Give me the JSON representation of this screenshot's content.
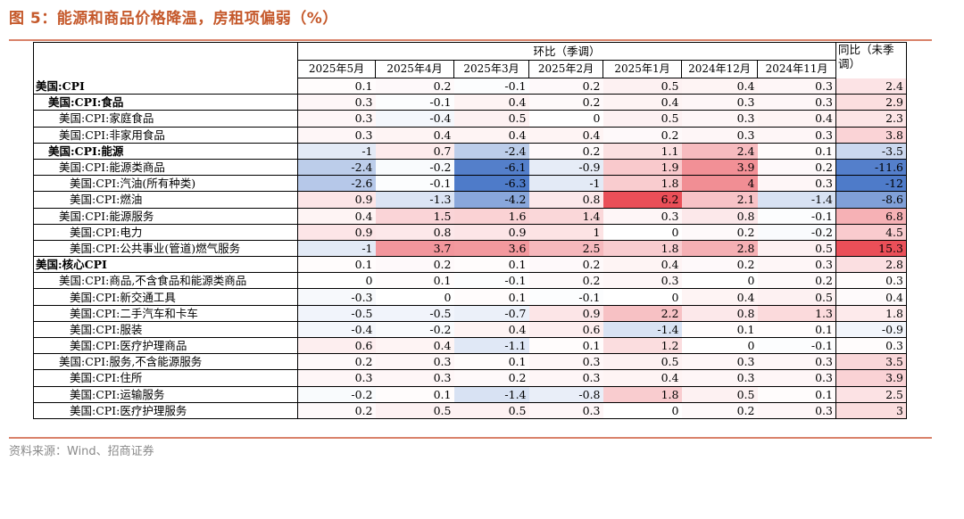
{
  "title": "图 5：能源和商品价格降温，房租项偏弱（%）",
  "source": "资料来源：Wind、招商证券",
  "header": {
    "mom": "环比（季调）",
    "yoy": "同比（未季调）",
    "dates": [
      "2025年5月",
      "2025年4月",
      "2025年3月",
      "2025年2月",
      "2025年1月",
      "2024年12月",
      "2024年11月"
    ]
  },
  "colors": {
    "positive": "#e8404a",
    "negative": "#3f6fc4"
  },
  "rows": [
    {
      "label": "美国:CPI",
      "bold": true,
      "indent": 0,
      "mom": [
        "0.1",
        "0.2",
        "-0.1",
        "0.2",
        "0.5",
        "0.4",
        "0.3"
      ],
      "yoy": "2.4"
    },
    {
      "label": "美国:CPI:食品",
      "bold": true,
      "indent": 1,
      "mom": [
        "0.3",
        "-0.1",
        "0.4",
        "0.2",
        "0.4",
        "0.3",
        "0.3"
      ],
      "yoy": "2.9"
    },
    {
      "label": "美国:CPI:家庭食品",
      "bold": false,
      "indent": 2,
      "mom": [
        "0.3",
        "-0.4",
        "0.5",
        "0",
        "0.5",
        "0.3",
        "0.4"
      ],
      "yoy": "2.3"
    },
    {
      "label": "美国:CPI:非家用食品",
      "bold": false,
      "indent": 2,
      "mom": [
        "0.3",
        "0.4",
        "0.4",
        "0.4",
        "0.2",
        "0.3",
        "0.3"
      ],
      "yoy": "3.8"
    },
    {
      "label": "美国:CPI:能源",
      "bold": true,
      "indent": 1,
      "mom": [
        "-1",
        "0.7",
        "-2.4",
        "0.2",
        "1.1",
        "2.4",
        "0.1"
      ],
      "yoy": "-3.5"
    },
    {
      "label": "美国:CPI:能源类商品",
      "bold": false,
      "indent": 2,
      "mom": [
        "-2.4",
        "-0.2",
        "-6.1",
        "-0.9",
        "1.9",
        "3.9",
        "0.2"
      ],
      "yoy": "-11.6"
    },
    {
      "label": "美国:CPI:汽油(所有种类)",
      "bold": false,
      "indent": 3,
      "mom": [
        "-2.6",
        "-0.1",
        "-6.3",
        "-1",
        "1.8",
        "4",
        "0.3"
      ],
      "yoy": "-12"
    },
    {
      "label": "美国:CPI:燃油",
      "bold": false,
      "indent": 3,
      "mom": [
        "0.9",
        "-1.3",
        "-4.2",
        "0.8",
        "6.2",
        "2.1",
        "-1.4"
      ],
      "yoy": "-8.6"
    },
    {
      "label": "美国:CPI:能源服务",
      "bold": false,
      "indent": 2,
      "mom": [
        "0.4",
        "1.5",
        "1.6",
        "1.4",
        "0.3",
        "0.8",
        "-0.1"
      ],
      "yoy": "6.8"
    },
    {
      "label": "美国:CPI:电力",
      "bold": false,
      "indent": 3,
      "mom": [
        "0.9",
        "0.8",
        "0.9",
        "1",
        "0",
        "0.2",
        "-0.2"
      ],
      "yoy": "4.5"
    },
    {
      "label": "美国:CPI:公共事业(管道)燃气服务",
      "bold": false,
      "indent": 3,
      "mom": [
        "-1",
        "3.7",
        "3.6",
        "2.5",
        "1.8",
        "2.8",
        "0.5"
      ],
      "yoy": "15.3"
    },
    {
      "label": "美国:核心CPI",
      "bold": true,
      "indent": 0,
      "mom": [
        "0.1",
        "0.2",
        "0.1",
        "0.2",
        "0.4",
        "0.2",
        "0.3"
      ],
      "yoy": "2.8"
    },
    {
      "label": "美国:CPI:商品,不含食品和能源类商品",
      "bold": false,
      "indent": 2,
      "mom": [
        "0",
        "0.1",
        "-0.1",
        "0.2",
        "0.3",
        "0",
        "0.2"
      ],
      "yoy": "0.3"
    },
    {
      "label": "美国:CPI:新交通工具",
      "bold": false,
      "indent": 3,
      "mom": [
        "-0.3",
        "0",
        "0.1",
        "-0.1",
        "0",
        "0.4",
        "0.5"
      ],
      "yoy": "0.4"
    },
    {
      "label": "美国:CPI:二手汽车和卡车",
      "bold": false,
      "indent": 3,
      "mom": [
        "-0.5",
        "-0.5",
        "-0.7",
        "0.9",
        "2.2",
        "0.8",
        "1.3"
      ],
      "yoy": "1.8"
    },
    {
      "label": "美国:CPI:服装",
      "bold": false,
      "indent": 3,
      "mom": [
        "-0.4",
        "-0.2",
        "0.4",
        "0.6",
        "-1.4",
        "0.1",
        "0.1"
      ],
      "yoy": "-0.9"
    },
    {
      "label": "美国:CPI:医疗护理商品",
      "bold": false,
      "indent": 3,
      "mom": [
        "0.6",
        "0.4",
        "-1.1",
        "0.1",
        "1.2",
        "0",
        "-0.1"
      ],
      "yoy": "0.3"
    },
    {
      "label": "美国:CPI:服务,不含能源服务",
      "bold": false,
      "indent": 2,
      "mom": [
        "0.2",
        "0.3",
        "0.1",
        "0.3",
        "0.5",
        "0.3",
        "0.3"
      ],
      "yoy": "3.5"
    },
    {
      "label": "美国:CPI:住所",
      "bold": false,
      "indent": 3,
      "mom": [
        "0.3",
        "0.3",
        "0.2",
        "0.3",
        "0.4",
        "0.3",
        "0.3"
      ],
      "yoy": "3.9"
    },
    {
      "label": "美国:CPI:运输服务",
      "bold": false,
      "indent": 3,
      "mom": [
        "-0.2",
        "0.1",
        "-1.4",
        "-0.8",
        "1.8",
        "0.5",
        "0.1"
      ],
      "yoy": "2.5"
    },
    {
      "label": "美国:CPI:医疗护理服务",
      "bold": false,
      "indent": 3,
      "mom": [
        "0.2",
        "0.5",
        "0.5",
        "0.3",
        "0",
        "0.2",
        "0.3"
      ],
      "yoy": "3"
    }
  ]
}
